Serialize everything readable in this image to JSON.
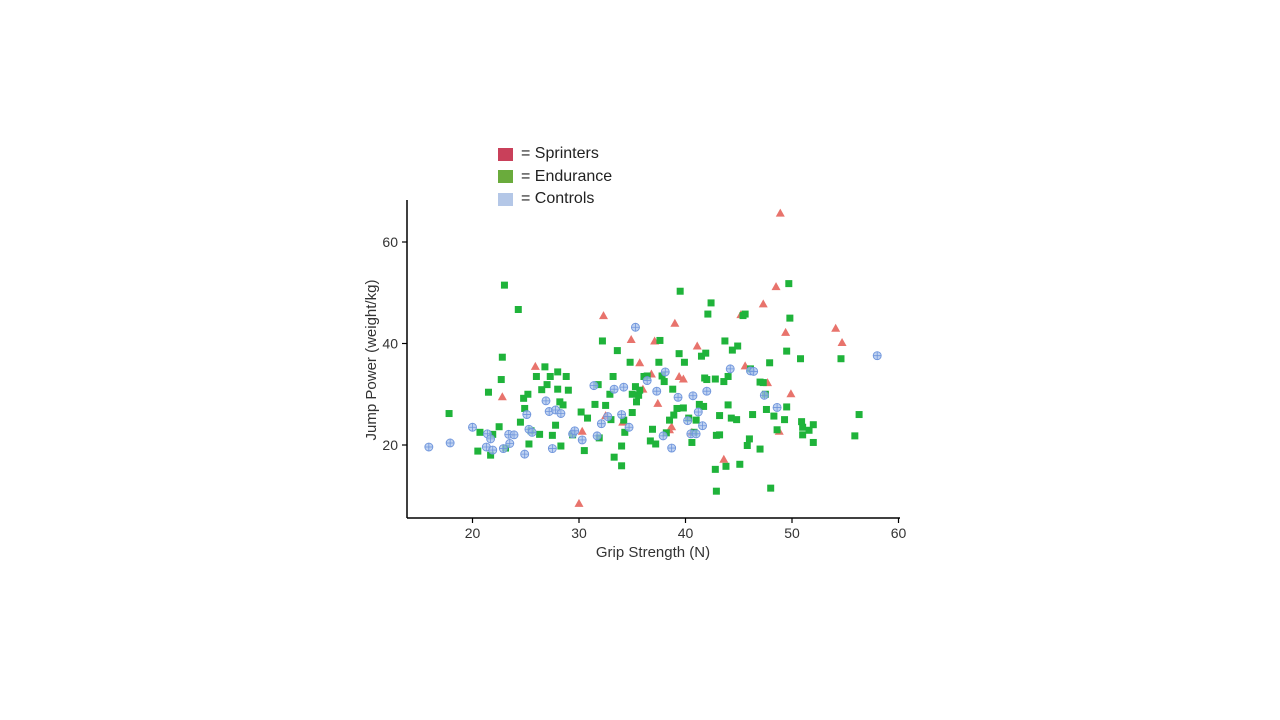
{
  "legend": {
    "items": [
      {
        "label": "= Sprinters",
        "color": "#c9405a"
      },
      {
        "label": "= Endurance",
        "color": "#6aab3c"
      },
      {
        "label": "= Controls",
        "color": "#b4c7e7"
      }
    ]
  },
  "chart_data": {
    "type": "scatter",
    "xlabel": "Grip Strength (N)",
    "ylabel": "Jump Power (weight/kg)",
    "xlim": [
      14,
      60
    ],
    "ylim": [
      5,
      68
    ],
    "xticks": [
      20,
      30,
      40,
      50,
      60
    ],
    "yticks": [
      20,
      40,
      60
    ],
    "grid": false,
    "legend_position": "top-left",
    "series": [
      {
        "name": "Sprinters",
        "marker": "triangle",
        "color": "#e8736c",
        "points": [
          [
            22.8,
            29.5
          ],
          [
            25.9,
            35.5
          ],
          [
            30.0,
            8.5
          ],
          [
            30.3,
            22.7
          ],
          [
            32.3,
            45.5
          ],
          [
            32.5,
            25.8
          ],
          [
            34.1,
            24.5
          ],
          [
            34.9,
            40.8
          ],
          [
            35.7,
            36.2
          ],
          [
            36.0,
            31.0
          ],
          [
            36.8,
            34.0
          ],
          [
            37.1,
            40.5
          ],
          [
            37.4,
            28.2
          ],
          [
            38.5,
            23.0
          ],
          [
            38.7,
            23.6
          ],
          [
            39.0,
            44.0
          ],
          [
            39.4,
            33.5
          ],
          [
            39.8,
            33.0
          ],
          [
            40.6,
            22.5
          ],
          [
            41.1,
            39.5
          ],
          [
            43.6,
            17.2
          ],
          [
            45.2,
            45.7
          ],
          [
            45.6,
            35.6
          ],
          [
            47.3,
            47.8
          ],
          [
            47.7,
            32.3
          ],
          [
            48.5,
            51.2
          ],
          [
            48.8,
            22.7
          ],
          [
            48.9,
            65.7
          ],
          [
            49.4,
            42.2
          ],
          [
            49.9,
            30.1
          ],
          [
            54.1,
            43.0
          ],
          [
            54.7,
            40.2
          ]
        ]
      },
      {
        "name": "Endurance",
        "marker": "square",
        "color": "#1fb33a",
        "points": [
          [
            17.8,
            26.2
          ],
          [
            20.5,
            18.8
          ],
          [
            20.7,
            22.5
          ],
          [
            21.5,
            30.4
          ],
          [
            21.7,
            18.0
          ],
          [
            21.9,
            22.1
          ],
          [
            22.5,
            23.6
          ],
          [
            22.7,
            32.9
          ],
          [
            22.8,
            37.3
          ],
          [
            23.0,
            51.5
          ],
          [
            23.1,
            19.4
          ],
          [
            24.3,
            46.7
          ],
          [
            24.5,
            24.5
          ],
          [
            24.8,
            29.2
          ],
          [
            24.9,
            27.2
          ],
          [
            25.2,
            30.0
          ],
          [
            25.3,
            20.2
          ],
          [
            25.5,
            22.8
          ],
          [
            26.0,
            33.5
          ],
          [
            26.3,
            22.1
          ],
          [
            26.5,
            30.9
          ],
          [
            26.8,
            35.4
          ],
          [
            27.0,
            31.9
          ],
          [
            27.3,
            33.5
          ],
          [
            27.5,
            21.9
          ],
          [
            27.8,
            23.9
          ],
          [
            28.0,
            31.0
          ],
          [
            28.0,
            34.4
          ],
          [
            28.2,
            28.5
          ],
          [
            28.3,
            19.8
          ],
          [
            28.5,
            27.9
          ],
          [
            28.8,
            33.5
          ],
          [
            29.0,
            30.8
          ],
          [
            29.4,
            22.0
          ],
          [
            30.2,
            26.5
          ],
          [
            30.5,
            18.9
          ],
          [
            30.8,
            25.3
          ],
          [
            31.5,
            28.0
          ],
          [
            31.8,
            31.9
          ],
          [
            31.9,
            21.4
          ],
          [
            32.2,
            40.5
          ],
          [
            32.5,
            27.8
          ],
          [
            32.9,
            30.0
          ],
          [
            33.0,
            25.0
          ],
          [
            33.2,
            33.5
          ],
          [
            33.3,
            17.6
          ],
          [
            33.6,
            38.6
          ],
          [
            34.0,
            15.9
          ],
          [
            34.0,
            19.8
          ],
          [
            34.2,
            24.9
          ],
          [
            34.3,
            22.5
          ],
          [
            34.8,
            36.3
          ],
          [
            35.0,
            30.0
          ],
          [
            35.0,
            26.4
          ],
          [
            35.3,
            31.5
          ],
          [
            35.4,
            28.5
          ],
          [
            35.6,
            29.8
          ],
          [
            35.7,
            30.8
          ],
          [
            36.1,
            33.5
          ],
          [
            36.4,
            33.6
          ],
          [
            36.7,
            20.8
          ],
          [
            36.9,
            23.1
          ],
          [
            37.2,
            20.2
          ],
          [
            37.5,
            36.3
          ],
          [
            37.6,
            40.6
          ],
          [
            37.8,
            33.6
          ],
          [
            38.0,
            32.5
          ],
          [
            38.2,
            22.4
          ],
          [
            38.5,
            24.9
          ],
          [
            38.8,
            31.0
          ],
          [
            38.9,
            25.9
          ],
          [
            39.2,
            27.2
          ],
          [
            39.4,
            38.0
          ],
          [
            39.5,
            50.3
          ],
          [
            39.8,
            27.3
          ],
          [
            39.9,
            36.3
          ],
          [
            40.3,
            25.3
          ],
          [
            40.6,
            20.5
          ],
          [
            40.8,
            22.5
          ],
          [
            41.0,
            24.9
          ],
          [
            41.3,
            28.0
          ],
          [
            41.5,
            37.5
          ],
          [
            41.7,
            27.6
          ],
          [
            41.8,
            33.2
          ],
          [
            41.9,
            38.1
          ],
          [
            42.0,
            32.9
          ],
          [
            42.1,
            45.8
          ],
          [
            42.4,
            48.0
          ],
          [
            42.8,
            33.0
          ],
          [
            42.8,
            15.2
          ],
          [
            42.9,
            21.9
          ],
          [
            43.2,
            22.0
          ],
          [
            43.2,
            25.8
          ],
          [
            43.6,
            32.5
          ],
          [
            43.7,
            40.5
          ],
          [
            43.8,
            15.8
          ],
          [
            44.0,
            27.9
          ],
          [
            44.0,
            33.5
          ],
          [
            44.3,
            25.3
          ],
          [
            44.4,
            38.7
          ],
          [
            44.8,
            25.0
          ],
          [
            44.9,
            39.5
          ],
          [
            45.1,
            16.2
          ],
          [
            45.4,
            45.5
          ],
          [
            45.6,
            45.8
          ],
          [
            45.8,
            19.9
          ],
          [
            46.0,
            21.2
          ],
          [
            46.1,
            35.0
          ],
          [
            46.3,
            26.0
          ],
          [
            47.0,
            32.4
          ],
          [
            47.0,
            19.2
          ],
          [
            47.3,
            32.3
          ],
          [
            47.5,
            30.0
          ],
          [
            47.6,
            27.0
          ],
          [
            47.9,
            36.2
          ],
          [
            48.0,
            11.5
          ],
          [
            48.3,
            25.7
          ],
          [
            48.6,
            23.0
          ],
          [
            49.3,
            25.0
          ],
          [
            49.5,
            38.5
          ],
          [
            49.5,
            27.5
          ],
          [
            49.7,
            51.8
          ],
          [
            49.8,
            45.0
          ],
          [
            50.8,
            37.0
          ],
          [
            50.9,
            24.6
          ],
          [
            51.0,
            23.5
          ],
          [
            51.0,
            22.0
          ],
          [
            51.6,
            22.9
          ],
          [
            52.0,
            24.0
          ],
          [
            52.0,
            20.5
          ],
          [
            54.6,
            37.0
          ],
          [
            55.9,
            21.8
          ],
          [
            56.3,
            26.0
          ],
          [
            42.9,
            10.9
          ]
        ]
      },
      {
        "name": "Controls",
        "marker": "circle",
        "color": "#a9c3ec",
        "points": [
          [
            15.9,
            19.6
          ],
          [
            17.9,
            20.4
          ],
          [
            20.0,
            23.5
          ],
          [
            21.3,
            19.6
          ],
          [
            21.4,
            22.2
          ],
          [
            21.7,
            21.2
          ],
          [
            21.9,
            19.0
          ],
          [
            22.9,
            19.3
          ],
          [
            23.4,
            22.1
          ],
          [
            23.5,
            20.3
          ],
          [
            23.9,
            22.0
          ],
          [
            24.9,
            18.2
          ],
          [
            25.1,
            26.0
          ],
          [
            25.3,
            23.1
          ],
          [
            25.6,
            22.5
          ],
          [
            26.9,
            28.7
          ],
          [
            27.2,
            26.6
          ],
          [
            27.5,
            19.3
          ],
          [
            27.8,
            26.9
          ],
          [
            28.3,
            26.2
          ],
          [
            29.4,
            22.2
          ],
          [
            29.6,
            22.8
          ],
          [
            30.3,
            21.0
          ],
          [
            31.4,
            31.7
          ],
          [
            31.7,
            21.8
          ],
          [
            32.1,
            24.2
          ],
          [
            32.7,
            25.6
          ],
          [
            33.3,
            31.0
          ],
          [
            34.0,
            26.0
          ],
          [
            34.2,
            31.4
          ],
          [
            34.7,
            23.5
          ],
          [
            35.3,
            43.2
          ],
          [
            36.4,
            32.7
          ],
          [
            37.3,
            30.6
          ],
          [
            37.9,
            21.8
          ],
          [
            38.1,
            34.4
          ],
          [
            38.7,
            19.4
          ],
          [
            39.3,
            29.4
          ],
          [
            40.2,
            24.8
          ],
          [
            40.5,
            22.2
          ],
          [
            40.7,
            29.7
          ],
          [
            41.0,
            22.2
          ],
          [
            41.2,
            26.5
          ],
          [
            41.6,
            23.8
          ],
          [
            42.0,
            30.6
          ],
          [
            44.2,
            35.0
          ],
          [
            46.1,
            34.6
          ],
          [
            46.4,
            34.5
          ],
          [
            47.4,
            29.8
          ],
          [
            48.6,
            27.4
          ],
          [
            58.0,
            37.6
          ]
        ]
      }
    ]
  }
}
